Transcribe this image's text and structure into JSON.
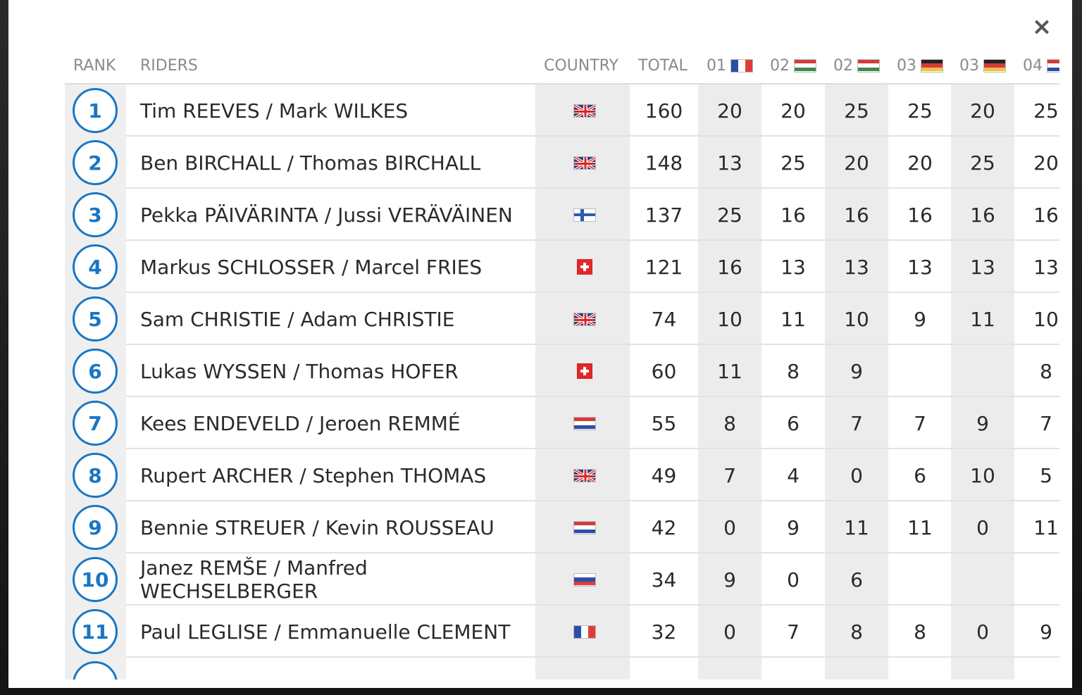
{
  "header": {
    "rank": "RANK",
    "riders": "RIDERS",
    "country": "COUNTRY",
    "total": "TOTAL",
    "rounds": [
      {
        "label": "01",
        "flag": "fr"
      },
      {
        "label": "02",
        "flag": "hu"
      },
      {
        "label": "02",
        "flag": "hu"
      },
      {
        "label": "03",
        "flag": "de"
      },
      {
        "label": "03",
        "flag": "de"
      },
      {
        "label": "04",
        "flag": "nl"
      }
    ]
  },
  "close_label": "×",
  "rows": [
    {
      "rank": "1",
      "riders": "Tim REEVES / Mark WILKES",
      "country": "gb",
      "total": "160",
      "points": [
        "20",
        "20",
        "25",
        "25",
        "20",
        "25"
      ]
    },
    {
      "rank": "2",
      "riders": "Ben BIRCHALL / Thomas BIRCHALL",
      "country": "gb",
      "total": "148",
      "points": [
        "13",
        "25",
        "20",
        "20",
        "25",
        "20"
      ]
    },
    {
      "rank": "3",
      "riders": "Pekka PÄIVÄRINTA / Jussi VERÄVÄINEN",
      "country": "fi",
      "total": "137",
      "points": [
        "25",
        "16",
        "16",
        "16",
        "16",
        "16"
      ]
    },
    {
      "rank": "4",
      "riders": "Markus SCHLOSSER / Marcel FRIES",
      "country": "ch",
      "total": "121",
      "points": [
        "16",
        "13",
        "13",
        "13",
        "13",
        "13"
      ]
    },
    {
      "rank": "5",
      "riders": "Sam CHRISTIE / Adam CHRISTIE",
      "country": "gb",
      "total": "74",
      "points": [
        "10",
        "11",
        "10",
        "9",
        "11",
        "10"
      ]
    },
    {
      "rank": "6",
      "riders": "Lukas WYSSEN / Thomas HOFER",
      "country": "ch",
      "total": "60",
      "points": [
        "11",
        "8",
        "9",
        "",
        "",
        "8"
      ]
    },
    {
      "rank": "7",
      "riders": "Kees ENDEVELD / Jeroen REMMÉ",
      "country": "nl",
      "total": "55",
      "points": [
        "8",
        "6",
        "7",
        "7",
        "9",
        "7"
      ]
    },
    {
      "rank": "8",
      "riders": "Rupert ARCHER / Stephen THOMAS",
      "country": "gb",
      "total": "49",
      "points": [
        "7",
        "4",
        "0",
        "6",
        "10",
        "5"
      ]
    },
    {
      "rank": "9",
      "riders": "Bennie STREUER / Kevin ROUSSEAU",
      "country": "nl",
      "total": "42",
      "points": [
        "0",
        "9",
        "11",
        "11",
        "0",
        "11"
      ]
    },
    {
      "rank": "10",
      "riders": "Janez REMŠE / Manfred WECHSELBERGER",
      "country": "si",
      "total": "34",
      "points": [
        "9",
        "0",
        "6",
        "",
        "",
        ""
      ]
    },
    {
      "rank": "11",
      "riders": "Paul LEGLISE / Emmanuelle CLEMENT",
      "country": "fr",
      "total": "32",
      "points": [
        "0",
        "7",
        "8",
        "8",
        "0",
        "9"
      ]
    }
  ],
  "colors": {
    "accent": "#1a76c4",
    "shade": "#ececec"
  }
}
